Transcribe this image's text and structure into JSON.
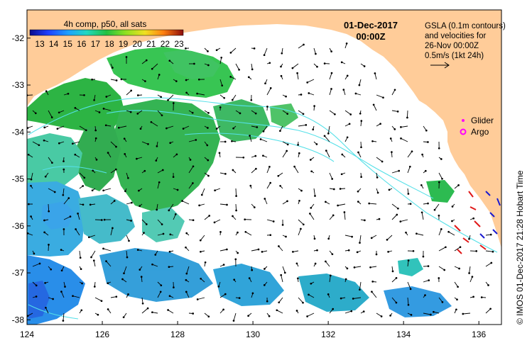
{
  "map": {
    "colorbar_title": "4h comp, p50, all sats",
    "colorbar_ticks": [
      "13",
      "14",
      "15",
      "16",
      "17",
      "18",
      "19",
      "20",
      "21",
      "22",
      "23"
    ],
    "date": "01-Dec-2017",
    "time": "00:00Z",
    "info_lines": [
      "GSLA (0.1m contours)",
      "and velocities for",
      "26-Nov 00:00Z",
      "0.5m/s (1kt 24h)"
    ],
    "legend_glider": "Glider",
    "legend_argo": "Argo",
    "footer": "© IMOS 01-Dec-2017 21:28 Hobart Time",
    "x_ticks": [
      "124",
      "126",
      "128",
      "130",
      "132",
      "134",
      "136"
    ],
    "y_ticks": [
      "-32",
      "-33",
      "-34",
      "-35",
      "-36",
      "-37",
      "-38"
    ],
    "colors": {
      "land": "#ffcc99",
      "contour": "#55e0e8",
      "glider": "#ff00ff",
      "argo": "#ff00ff",
      "arrow": "#000000"
    }
  }
}
